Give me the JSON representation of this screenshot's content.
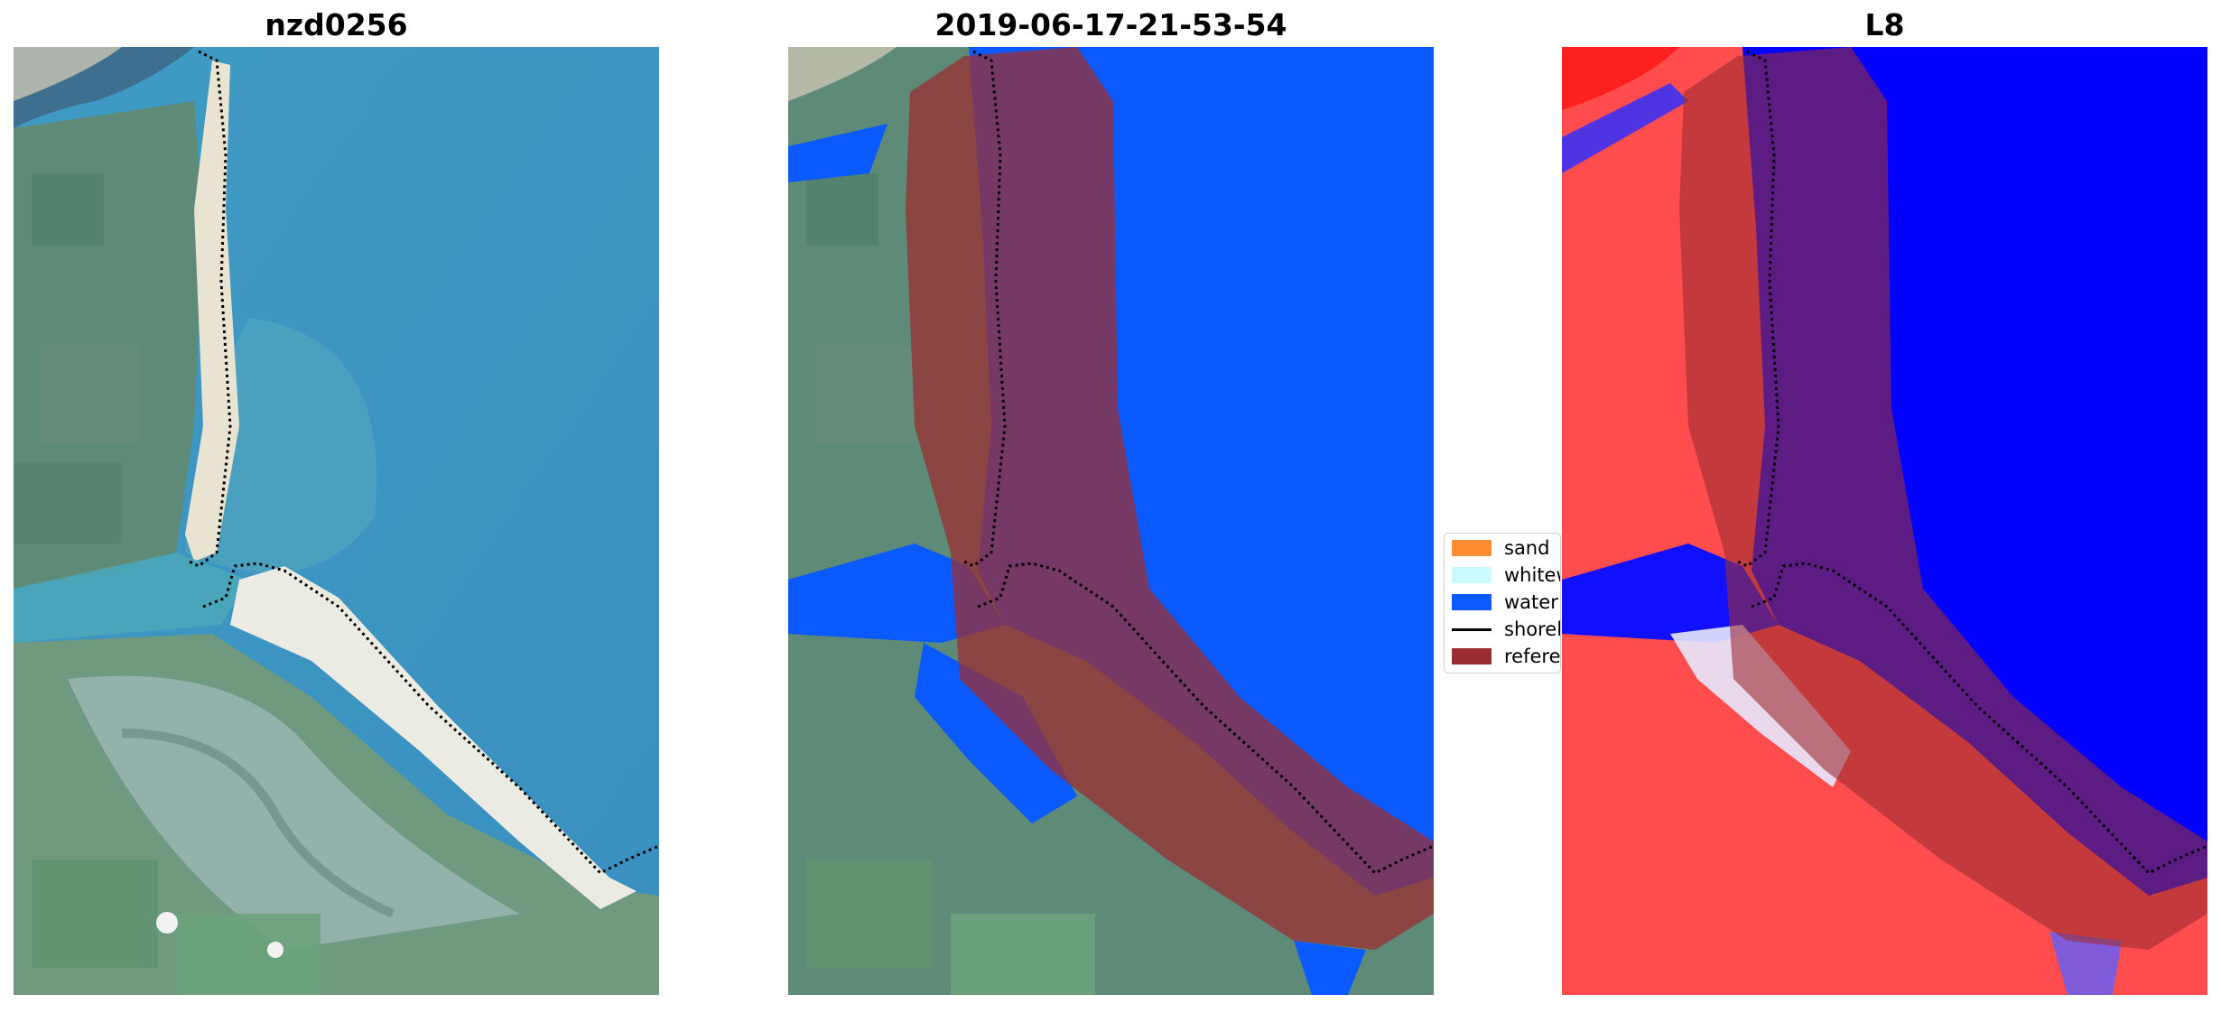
{
  "panels": {
    "rgb": {
      "title": "nzd0256"
    },
    "classified": {
      "title": "2019-06-17-21-53-54"
    },
    "index": {
      "title": "L8"
    }
  },
  "legend": {
    "items": [
      {
        "label": "sand",
        "color": "#ff8c32",
        "type": "patch"
      },
      {
        "label": "whitew",
        "color": "#c8faff",
        "type": "patch"
      },
      {
        "label": "water",
        "color": "#0a5aff",
        "type": "patch"
      },
      {
        "label": "shorel",
        "color": "#000000",
        "type": "line"
      },
      {
        "label": "referen",
        "color": "#9b2d32",
        "type": "patch"
      }
    ]
  },
  "colors": {
    "reference_buffer": "#9b2d32",
    "water": "#0a5aff",
    "shoreline": "#000000"
  }
}
